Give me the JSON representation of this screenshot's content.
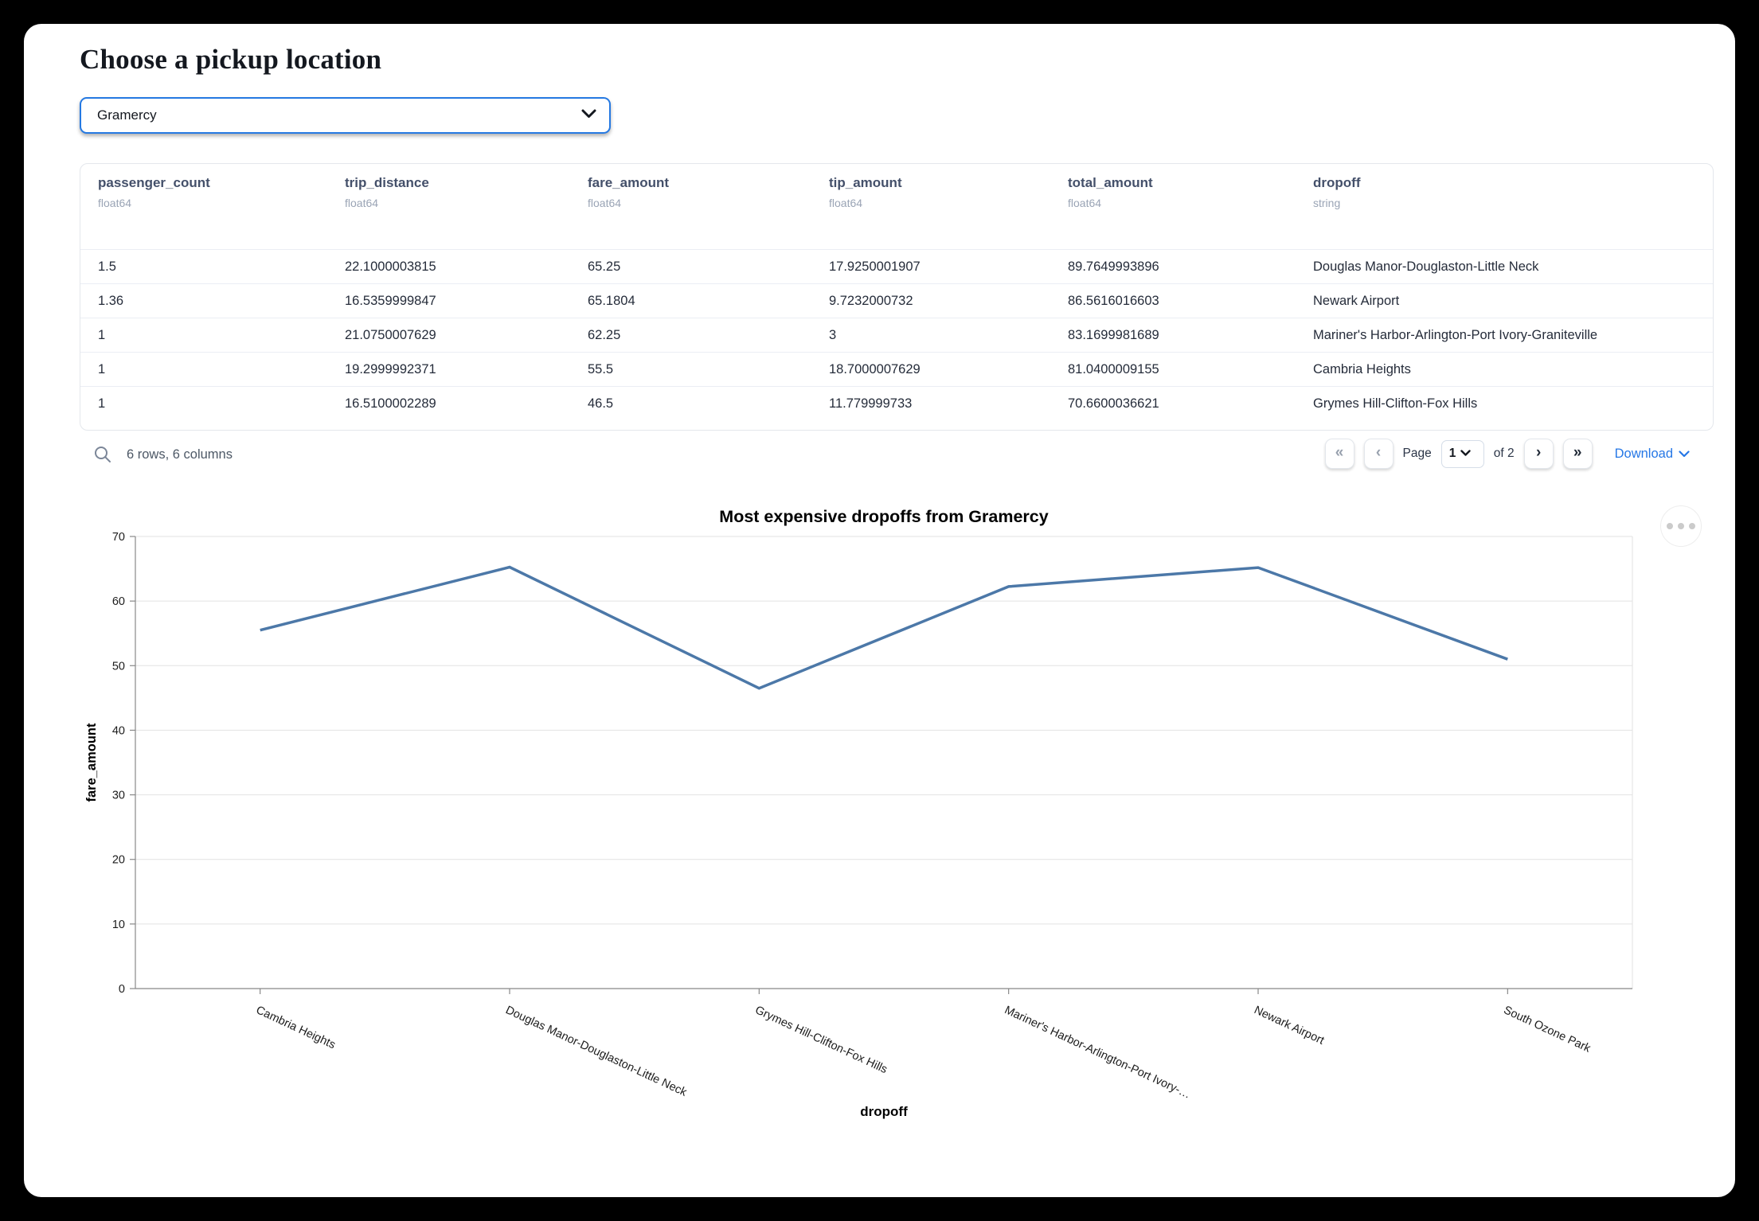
{
  "page": {
    "title": "Choose a pickup location"
  },
  "pickup_select": {
    "value": "Gramercy",
    "chevron_icon": "chevron-down-icon"
  },
  "table": {
    "columns": [
      {
        "name": "passenger_count",
        "type": "float64"
      },
      {
        "name": "trip_distance",
        "type": "float64"
      },
      {
        "name": "fare_amount",
        "type": "float64"
      },
      {
        "name": "tip_amount",
        "type": "float64"
      },
      {
        "name": "total_amount",
        "type": "float64"
      },
      {
        "name": "dropoff",
        "type": "string"
      }
    ],
    "rows": [
      [
        "1.5",
        "22.1000003815",
        "65.25",
        "17.9250001907",
        "89.7649993896",
        "Douglas Manor-Douglaston-Little Neck"
      ],
      [
        "1.36",
        "16.5359999847",
        "65.1804",
        "9.7232000732",
        "86.5616016603",
        "Newark Airport"
      ],
      [
        "1",
        "21.0750007629",
        "62.25",
        "3",
        "83.1699981689",
        "Mariner's Harbor-Arlington-Port Ivory-Graniteville"
      ],
      [
        "1",
        "19.2999992371",
        "55.5",
        "18.7000007629",
        "81.0400009155",
        "Cambria Heights"
      ],
      [
        "1",
        "16.5100002289",
        "46.5",
        "11.779999733",
        "70.6600036621",
        "Grymes Hill-Clifton-Fox Hills"
      ]
    ],
    "footer": {
      "summary": "6 rows, 6 columns",
      "first": "«",
      "prev": "‹",
      "page_label": "Page",
      "page_value": "1",
      "of_label": "of 2",
      "next": "›",
      "last": "»",
      "download_label": "Download"
    }
  },
  "chart_data": {
    "type": "line",
    "title": "Most expensive dropoffs from Gramercy",
    "xlabel": "dropoff",
    "ylabel": "fare_amount",
    "categories": [
      "Cambria Heights",
      "Douglas Manor-Douglaston-Little Neck",
      "Grymes Hill-Clifton-Fox Hills",
      "Mariner's Harbor-Arlington-Port Ivory-…",
      "Newark Airport",
      "South Ozone Park"
    ],
    "values": [
      55.5,
      65.25,
      46.5,
      62.25,
      65.1804,
      51
    ],
    "ylim": [
      0,
      70
    ],
    "yticks": [
      0,
      10,
      20,
      30,
      40,
      50,
      60,
      70
    ],
    "grid": true,
    "legend": false,
    "colors": {
      "line": "#4c78a8",
      "grid": "#e2e2e2",
      "axis": "#888888",
      "label": "#1c1c1c",
      "title": "#000000"
    }
  }
}
